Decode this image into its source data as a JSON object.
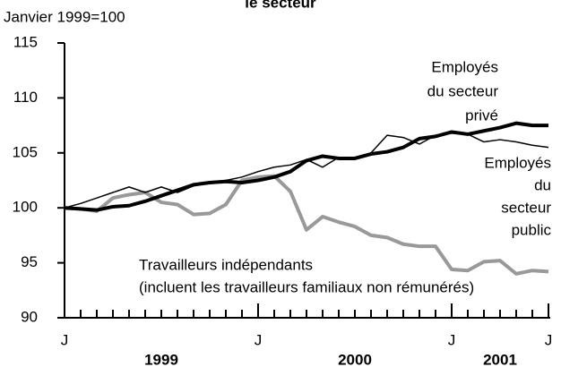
{
  "chart_data": {
    "type": "line",
    "title": "le secteur",
    "y_label": "Janvier 1999=100",
    "categories": [
      "J",
      null,
      null,
      null,
      null,
      null,
      null,
      null,
      null,
      null,
      null,
      null,
      "J",
      null,
      null,
      null,
      null,
      null,
      null,
      null,
      null,
      null,
      null,
      null,
      "J",
      null,
      null,
      null,
      null,
      null,
      "J"
    ],
    "years": [
      "1999",
      "2000",
      "2001"
    ],
    "ylim": [
      90,
      115
    ],
    "yticks": [
      90,
      95,
      100,
      105,
      110,
      115
    ],
    "series": [
      {
        "name": "Employés du secteur privé",
        "label_lines": [
          "Employés",
          "du secteur",
          "privé"
        ],
        "color": "#000000",
        "width": 4,
        "values": [
          100,
          99.9,
          99.8,
          100.1,
          100.2,
          100.6,
          101.1,
          101.6,
          102.1,
          102.3,
          102.4,
          102.3,
          102.5,
          102.8,
          103.3,
          104.3,
          104.7,
          104.5,
          104.5,
          104.9,
          105.1,
          105.5,
          106.3,
          106.5,
          106.9,
          106.7,
          107.0,
          107.3,
          107.7,
          107.5,
          107.5
        ]
      },
      {
        "name": "Employés du secteur public",
        "label_lines": [
          "Employés",
          "du",
          "secteur",
          "public"
        ],
        "color": "#000000",
        "width": 1.5,
        "values": [
          100,
          100.4,
          100.9,
          101.4,
          101.9,
          101.4,
          101.9,
          101.4,
          102.0,
          102.3,
          102.5,
          102.8,
          103.3,
          103.7,
          103.9,
          104.4,
          103.7,
          104.6,
          104.6,
          105.0,
          106.6,
          106.4,
          105.8,
          106.6,
          106.8,
          106.7,
          106.0,
          106.2,
          106.0,
          105.7,
          105.5
        ]
      },
      {
        "name": "Travailleurs indépendants",
        "label_lines": [
          "Travailleurs indépendants",
          "(incluent les travailleurs familiaux non rémunérés)"
        ],
        "color": "#999999",
        "width": 4,
        "values": [
          100,
          99.9,
          99.7,
          100.9,
          101.2,
          101.4,
          100.5,
          100.3,
          99.4,
          99.5,
          100.3,
          102.5,
          102.8,
          102.9,
          101.5,
          98.0,
          99.2,
          98.7,
          98.3,
          97.5,
          97.3,
          96.7,
          96.5,
          96.5,
          94.4,
          94.3,
          95.1,
          95.2,
          94.0,
          94.3,
          94.2
        ]
      }
    ]
  }
}
